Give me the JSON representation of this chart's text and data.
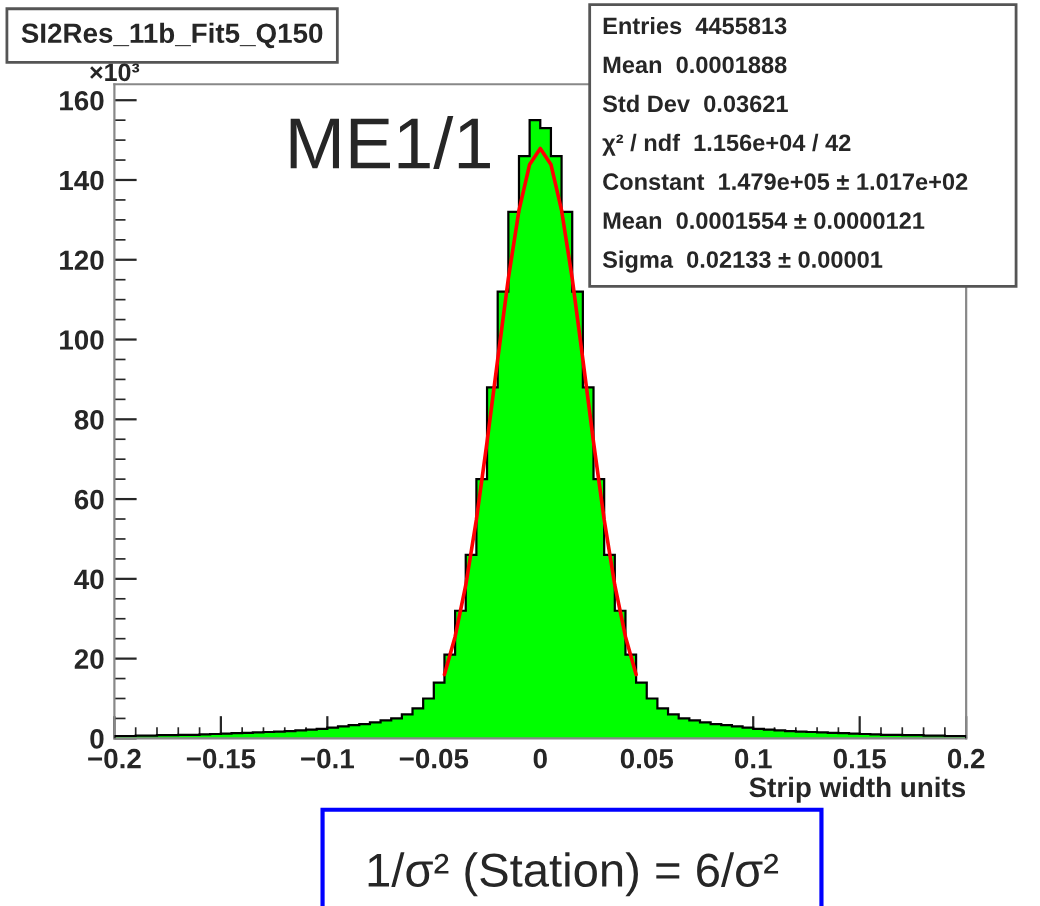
{
  "chart_data": {
    "type": "histogram",
    "title": "SI2Res_11b_Fit5_Q150",
    "xlabel": "Strip width units",
    "annotations": [
      "×10³",
      "ME1/1",
      "Entries  4455813",
      "Mean  0.0001888",
      "Std Dev  0.03621",
      "χ² / ndf  1.156e+04 / 42",
      "Constant  1.479e+05 ± 1.017e+02",
      "Mean  0.0001554 ± 0.0000121",
      "Sigma  0.02133 ± 0.00001",
      "1/σ² (Station) = 6/σ²"
    ],
    "bins": [
      -0.2,
      -0.195,
      -0.19,
      -0.185,
      -0.18,
      -0.175,
      -0.17,
      -0.165,
      -0.16,
      -0.155,
      -0.15,
      -0.145,
      -0.14,
      -0.135,
      -0.13,
      -0.125,
      -0.12,
      -0.115,
      -0.11,
      -0.105,
      -0.1,
      -0.095,
      -0.09,
      -0.085,
      -0.08,
      -0.075,
      -0.07,
      -0.065,
      -0.06,
      -0.055,
      -0.05,
      -0.045,
      -0.04,
      -0.035,
      -0.03,
      -0.025,
      -0.02,
      -0.015,
      -0.01,
      -0.005,
      0,
      0.005,
      0.01,
      0.015,
      0.02,
      0.025,
      0.03,
      0.035,
      0.04,
      0.045,
      0.05,
      0.055,
      0.06,
      0.065,
      0.07,
      0.075,
      0.08,
      0.085,
      0.09,
      0.095,
      0.1,
      0.105,
      0.11,
      0.115,
      0.12,
      0.125,
      0.13,
      0.135,
      0.14,
      0.145,
      0.15,
      0.155,
      0.16,
      0.165,
      0.17,
      0.175,
      0.18,
      0.185,
      0.19,
      0.195,
      0.2
    ],
    "values": [
      0.6,
      0.6,
      0.7,
      0.7,
      0.8,
      0.8,
      0.9,
      0.9,
      1,
      1.1,
      1.2,
      1.3,
      1.4,
      1.5,
      1.6,
      1.7,
      1.8,
      2,
      2.2,
      2.4,
      2.7,
      3,
      3.3,
      3.6,
      4,
      4.5,
      5,
      6,
      7.5,
      10,
      14,
      21,
      32,
      46,
      65,
      88,
      112,
      132,
      146,
      155,
      153,
      146,
      132,
      112,
      88,
      65,
      46,
      32,
      21,
      14,
      10,
      7.5,
      6,
      5,
      4.5,
      4,
      3.6,
      3.3,
      3,
      2.7,
      2.4,
      2.2,
      2,
      1.8,
      1.7,
      1.6,
      1.5,
      1.4,
      1.3,
      1.2,
      1.1,
      1,
      0.9,
      0.9,
      0.8,
      0.8,
      0.7,
      0.7,
      0.6,
      0.6
    ],
    "color": "#00ff00",
    "series": [
      {
        "type": "line",
        "color": "#ff0000",
        "x": [
          -0.045,
          -0.04,
          -0.035,
          -0.03,
          -0.025,
          -0.02,
          -0.015,
          -0.01,
          -0.005,
          0,
          0.005,
          0.01,
          0.015,
          0.02,
          0.025,
          0.03,
          0.035,
          0.04,
          0.045
        ],
        "values": [
          16,
          25.5,
          38.4,
          54.9,
          74.3,
          95,
          115.3,
          132.4,
          143.9,
          147.9,
          143.9,
          132.4,
          115.3,
          95,
          74.3,
          54.9,
          38.4,
          25.5,
          16
        ]
      }
    ],
    "xlim": [
      -0.2,
      0.2
    ],
    "ylim": [
      0,
      164
    ],
    "xticks": [
      {
        "value": -0.2,
        "label": "−0.2"
      },
      {
        "value": -0.15,
        "label": "−0.15"
      },
      {
        "value": -0.1,
        "label": "−0.1"
      },
      {
        "value": -0.05,
        "label": "−0.05"
      },
      0,
      0.05,
      0.1,
      0.15,
      0.2
    ],
    "yticks": [
      0,
      20,
      40,
      60,
      80,
      100,
      120,
      140,
      160
    ]
  }
}
